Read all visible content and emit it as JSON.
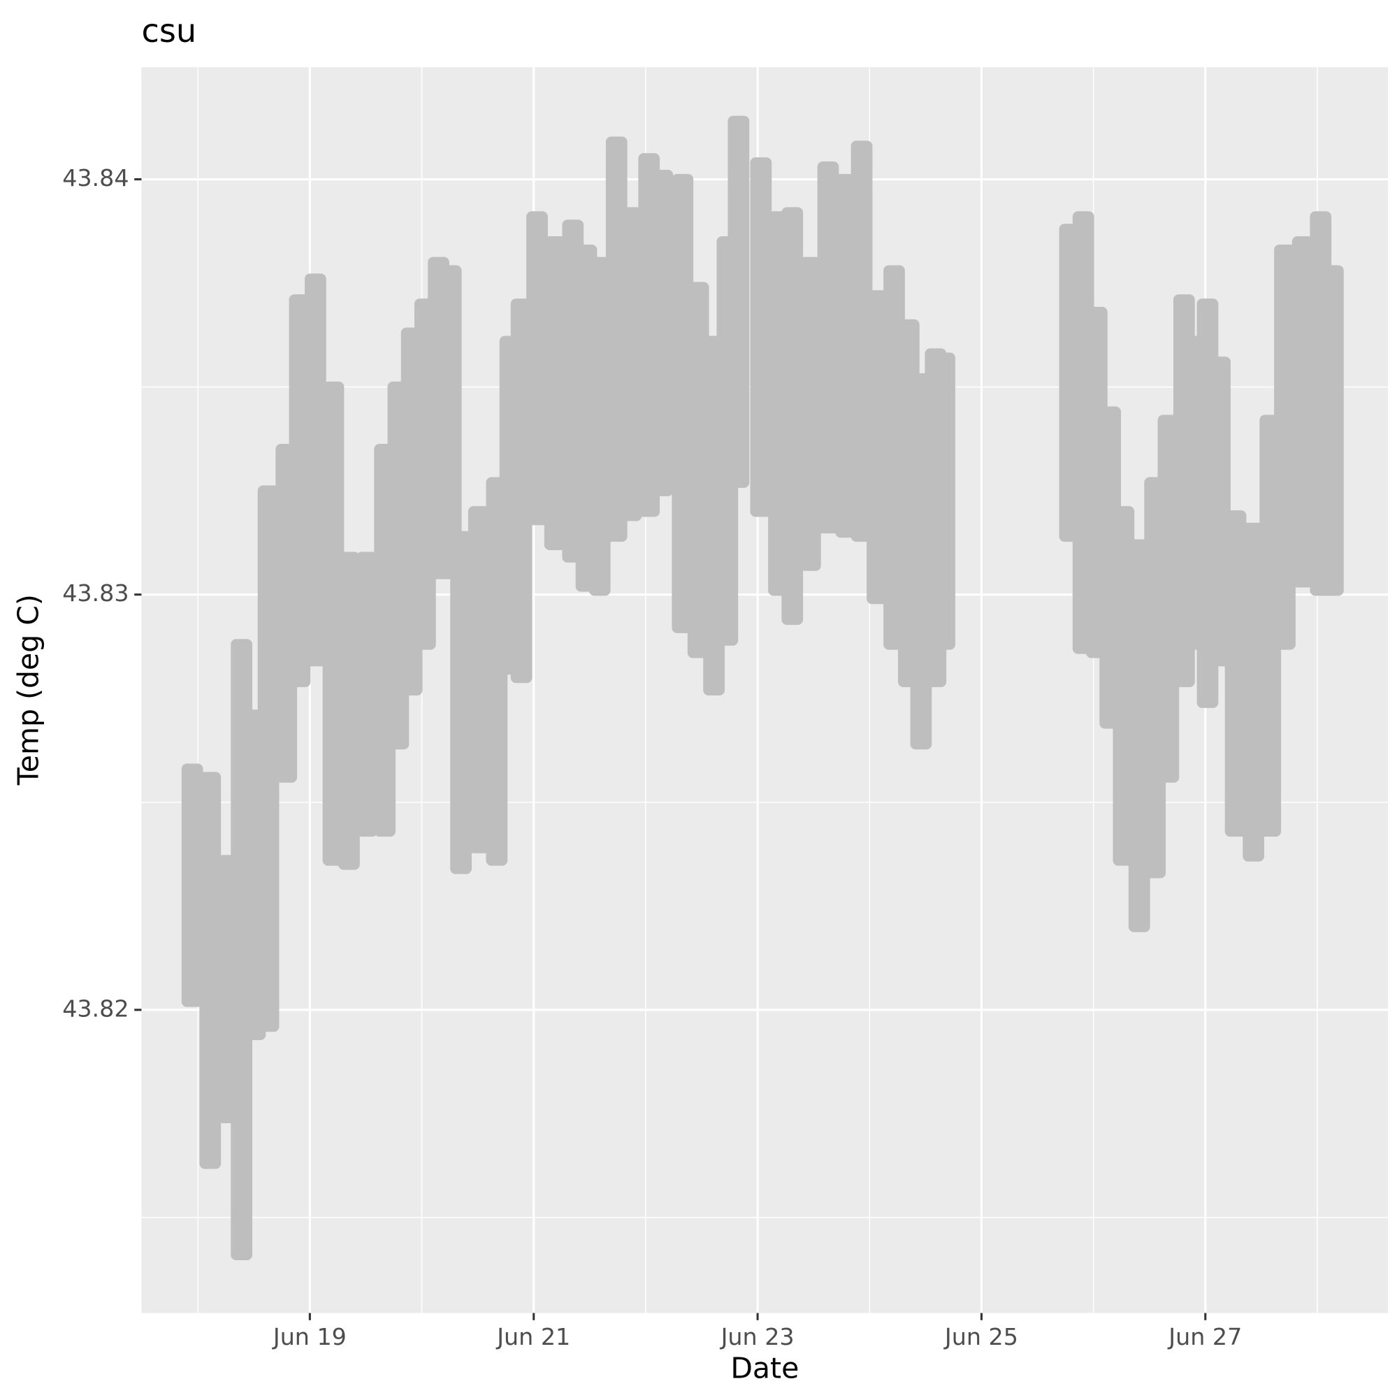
{
  "chart_data": {
    "type": "range",
    "title": "csu",
    "x_label": "Date",
    "y_label": "Temp (deg C)",
    "color": "#bebebe",
    "grid": true,
    "xlim": [
      17.496,
      28.632
    ],
    "ylim": [
      43.8127,
      43.8427
    ],
    "xticks": [
      {
        "value": 19,
        "label": "Jun 19"
      },
      {
        "value": 21,
        "label": "Jun 21"
      },
      {
        "value": 23,
        "label": "Jun 23"
      },
      {
        "value": 25,
        "label": "Jun 25"
      },
      {
        "value": 27,
        "label": "Jun 27"
      }
    ],
    "xminor": [
      18,
      20,
      22,
      24,
      26,
      28
    ],
    "yticks": [
      43.82,
      43.83,
      43.84
    ],
    "yminor": [
      43.815,
      43.825,
      43.835
    ],
    "x": [
      17.95,
      18.11,
      18.27,
      18.39,
      18.51,
      18.63,
      18.79,
      18.91,
      19.05,
      19.21,
      19.35,
      19.51,
      19.67,
      19.79,
      19.91,
      20.03,
      20.15,
      20.26,
      20.35,
      20.51,
      20.67,
      20.79,
      20.89,
      21.03,
      21.19,
      21.35,
      21.47,
      21.59,
      21.74,
      21.87,
      22.03,
      22.15,
      22.33,
      22.47,
      22.61,
      22.73,
      22.83,
      23.03,
      23.19,
      23.31,
      23.47,
      23.63,
      23.79,
      23.93,
      24.07,
      24.22,
      24.35,
      24.46,
      24.59,
      24.67,
      25.79,
      25.91,
      26.03,
      26.15,
      26.27,
      26.41,
      26.55,
      26.67,
      26.81,
      26.91,
      27.02,
      27.13,
      27.27,
      27.43,
      27.58,
      27.71,
      27.87,
      28.03,
      28.14
    ],
    "high": [
      43.8258,
      43.8256,
      43.8236,
      43.8288,
      43.8271,
      43.8325,
      43.8335,
      43.8371,
      43.8376,
      43.835,
      43.8309,
      43.8309,
      43.8335,
      43.835,
      43.8363,
      43.837,
      43.838,
      43.8378,
      43.8314,
      43.832,
      43.8327,
      43.8361,
      43.837,
      43.8391,
      43.8385,
      43.8389,
      43.8383,
      43.838,
      43.8409,
      43.8392,
      43.8405,
      43.8401,
      43.84,
      43.8374,
      43.8361,
      43.8385,
      43.8414,
      43.8404,
      43.8391,
      43.8392,
      43.838,
      43.8403,
      43.84,
      43.8408,
      43.8372,
      43.8378,
      43.8365,
      43.8352,
      43.8358,
      43.8357,
      43.8388,
      43.8391,
      43.8368,
      43.8344,
      43.832,
      43.8312,
      43.8327,
      43.8342,
      43.8371,
      43.8361,
      43.837,
      43.8356,
      43.8319,
      43.8316,
      43.8342,
      43.8383,
      43.8385,
      43.8391,
      43.8378
    ],
    "low": [
      43.8202,
      43.8163,
      43.8174,
      43.8141,
      43.8194,
      43.8196,
      43.8256,
      43.8279,
      43.8284,
      43.8236,
      43.8235,
      43.8243,
      43.8243,
      43.8264,
      43.8277,
      43.8288,
      43.8305,
      43.8305,
      43.8234,
      43.8239,
      43.8236,
      43.8282,
      43.828,
      43.8318,
      43.8312,
      43.8309,
      43.8302,
      43.8301,
      43.8314,
      43.8319,
      43.832,
      43.8325,
      43.8292,
      43.8286,
      43.8277,
      43.8289,
      43.8327,
      43.832,
      43.8301,
      43.8294,
      43.8307,
      43.8316,
      43.8315,
      43.8314,
      43.8299,
      43.8288,
      43.8279,
      43.8264,
      43.8279,
      43.8288,
      43.8314,
      43.8287,
      43.8286,
      43.8269,
      43.8236,
      43.822,
      43.8233,
      43.8256,
      43.8279,
      43.8288,
      43.8274,
      43.8284,
      43.8243,
      43.8237,
      43.8243,
      43.8288,
      43.8303,
      43.8301,
      43.8301
    ]
  }
}
